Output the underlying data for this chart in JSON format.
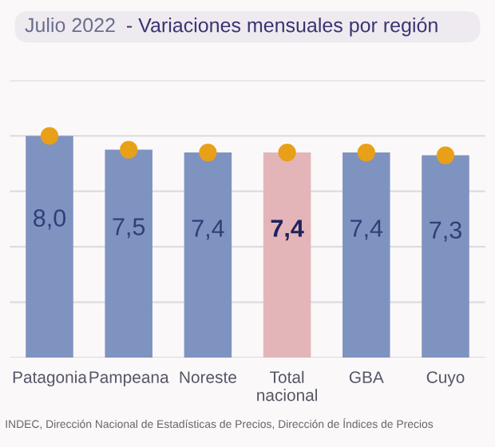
{
  "chart_data": {
    "type": "bar",
    "title": "Julio 2022",
    "subtitle": "- Variaciones mensuales por región",
    "categories": [
      "Patagonia",
      "Pampeana",
      "Noreste",
      "Total\nnacional",
      "GBA",
      "Cuyo"
    ],
    "series": [
      {
        "colors": [
          "#7f93c0",
          "#7f93c0",
          "#7f93c0",
          "#e3b5b8",
          "#7f93c0",
          "#7f93c0"
        ],
        "values": [
          8.0,
          7.5,
          7.4,
          7.4,
          7.4,
          7.3
        ],
        "value_labels": [
          "8,0",
          "7,5",
          "7,4",
          "7,4",
          "7,4",
          "7,3"
        ]
      },
      {
        "type": "scatter",
        "color": "#e8a019",
        "x": [
          "Patagonia",
          "Pampeana",
          "Noreste",
          "Total\nnacional",
          "GBA",
          "Cuyo"
        ],
        "values": [
          8.0,
          7.5,
          7.4,
          7.4,
          7.4,
          7.3
        ]
      }
    ],
    "ylim": [
      0,
      10
    ],
    "yticks": [
      {
        "value": 0,
        "label": null
      },
      {
        "value": 2,
        "label": null
      },
      {
        "value": 4,
        "label": null
      },
      {
        "value": 6,
        "label": null
      },
      {
        "value": 8,
        "label": null
      },
      {
        "value": 10,
        "label": null
      }
    ],
    "grid": "y",
    "tick_labels": "x",
    "marker": "circle",
    "annotations": [
      "INDEC, Dirección Nacional de Estadísticas de Precios, Dirección de Índices de Precios"
    ]
  }
}
